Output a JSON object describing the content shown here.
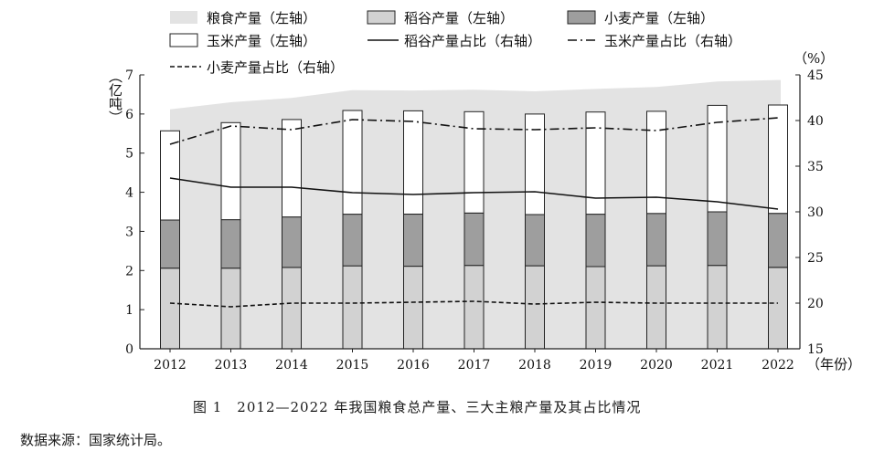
{
  "chart_data": {
    "type": "bar",
    "subtype": "stacked-bar-with-lines",
    "categories": [
      "2012",
      "2013",
      "2014",
      "2015",
      "2016",
      "2017",
      "2018",
      "2019",
      "2020",
      "2021",
      "2022"
    ],
    "x_unit_label": "（年份）",
    "left_axis": {
      "label": "（亿吨）",
      "ylim": [
        0,
        7
      ],
      "ticks": [
        "0",
        "1",
        "2",
        "3",
        "4",
        "5",
        "6",
        "7"
      ]
    },
    "right_axis": {
      "label": "（%）",
      "ylim": [
        15,
        45
      ],
      "ticks": [
        "15",
        "20",
        "25",
        "30",
        "35",
        "40",
        "45"
      ]
    },
    "area_series": {
      "name": "粮食产量（左轴）",
      "color": "#e3e3e3",
      "values": [
        6.12,
        6.3,
        6.41,
        6.61,
        6.6,
        6.62,
        6.58,
        6.64,
        6.69,
        6.83,
        6.87
      ]
    },
    "bar_series": [
      {
        "name": "稻谷产量（左轴）",
        "color": "#d2d2d2",
        "values": [
          2.06,
          2.06,
          2.08,
          2.12,
          2.11,
          2.13,
          2.12,
          2.1,
          2.12,
          2.13,
          2.08
        ]
      },
      {
        "name": "小麦产量（左轴）",
        "color": "#9e9e9e",
        "values": [
          1.23,
          1.24,
          1.29,
          1.32,
          1.33,
          1.34,
          1.31,
          1.34,
          1.34,
          1.37,
          1.38
        ]
      },
      {
        "name": "玉米产量（左轴）",
        "color": "#ffffff",
        "values": [
          2.28,
          2.48,
          2.49,
          2.65,
          2.64,
          2.59,
          2.57,
          2.61,
          2.61,
          2.72,
          2.77
        ]
      }
    ],
    "line_series": [
      {
        "name": "稻谷产量占比（右轴）",
        "style": "solid",
        "values": [
          33.7,
          32.7,
          32.7,
          32.1,
          31.9,
          32.1,
          32.2,
          31.5,
          31.6,
          31.1,
          30.3
        ]
      },
      {
        "name": "玉米产量占比（右轴）",
        "style": "dashdot",
        "values": [
          37.4,
          39.4,
          39.0,
          40.1,
          39.9,
          39.1,
          39.0,
          39.2,
          38.9,
          39.8,
          40.3
        ]
      },
      {
        "name": "小麦产量占比（右轴）",
        "style": "dashed",
        "values": [
          20.0,
          19.6,
          20.0,
          20.0,
          20.1,
          20.2,
          19.9,
          20.1,
          20.0,
          20.0,
          20.0
        ]
      }
    ],
    "legend_position": "top",
    "grid": false
  },
  "caption": "图 1　2012—2022 年我国粮食总产量、三大主粮产量及其占比情况",
  "source": "数据来源：国家统计局。"
}
